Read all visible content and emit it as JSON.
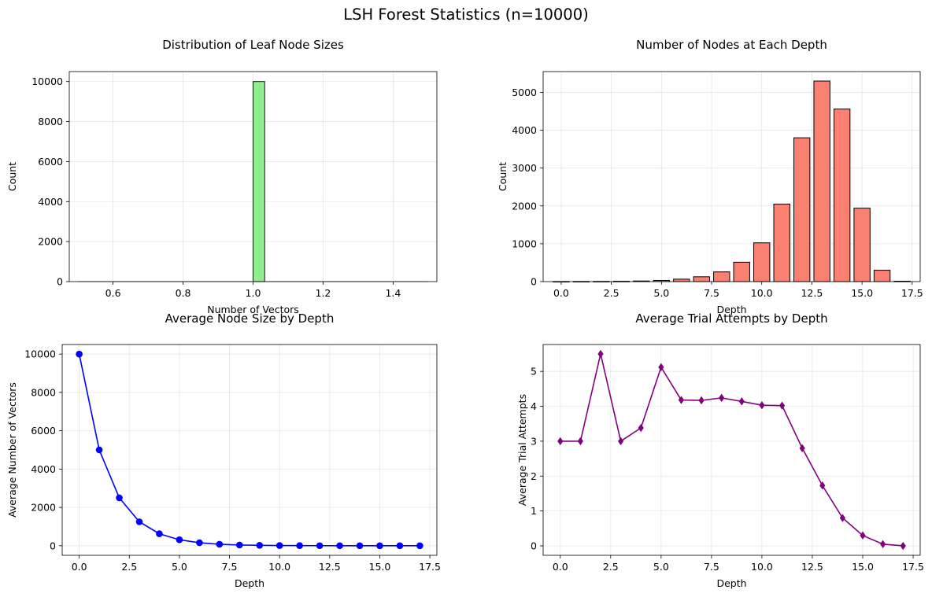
{
  "suptitle": "LSH Forest Statistics (n=10000)",
  "chart_data": [
    {
      "type": "bar",
      "title": "Distribution of Leaf Node Sizes",
      "xlabel": "Number of Vectors",
      "ylabel": "Count",
      "xlim": [
        0.475,
        1.525
      ],
      "ylim": [
        0,
        10500
      ],
      "xticks": [
        0.6,
        0.8,
        1.0,
        1.2,
        1.4
      ],
      "xtick_labels": [
        "0.6",
        "0.8",
        "1.0",
        "1.2",
        "1.4"
      ],
      "yticks": [
        0,
        2000,
        4000,
        6000,
        8000,
        10000
      ],
      "bins": {
        "start": 0.5,
        "width": 0.03333,
        "count": 30
      },
      "values": [
        0,
        0,
        0,
        0,
        0,
        0,
        0,
        0,
        0,
        0,
        0,
        0,
        0,
        0,
        0,
        10000,
        0,
        0,
        0,
        0,
        0,
        0,
        0,
        0,
        0,
        0,
        0,
        0,
        0,
        0
      ],
      "color": "#90ee90",
      "grid": true
    },
    {
      "type": "bar",
      "title": "Number of Nodes at Each Depth",
      "xlabel": "Depth",
      "ylabel": "Count",
      "xlim": [
        -0.9,
        17.9
      ],
      "ylim": [
        0,
        5550
      ],
      "xticks": [
        0,
        2.5,
        5,
        7.5,
        10,
        12.5,
        15,
        17.5
      ],
      "xtick_labels": [
        "0.0",
        "2.5",
        "5.0",
        "7.5",
        "10.0",
        "12.5",
        "15.0",
        "17.5"
      ],
      "yticks": [
        0,
        1000,
        2000,
        3000,
        4000,
        5000
      ],
      "categories": [
        0,
        1,
        2,
        3,
        4,
        5,
        6,
        7,
        8,
        9,
        10,
        11,
        12,
        13,
        14,
        15,
        16,
        17
      ],
      "values": [
        1,
        2,
        4,
        8,
        16,
        32,
        64,
        128,
        256,
        512,
        1024,
        2048,
        3800,
        5300,
        4560,
        1940,
        300,
        10
      ],
      "color": "#fa8072",
      "grid": true
    },
    {
      "type": "line",
      "title": "Average Node Size by Depth",
      "xlabel": "Depth",
      "ylabel": "Average Number of Vectors",
      "xlim": [
        -0.85,
        17.85
      ],
      "ylim": [
        -500,
        10500
      ],
      "xticks": [
        0,
        2.5,
        5,
        7.5,
        10,
        12.5,
        15,
        17.5
      ],
      "xtick_labels": [
        "0.0",
        "2.5",
        "5.0",
        "7.5",
        "10.0",
        "12.5",
        "15.0",
        "17.5"
      ],
      "yticks": [
        0,
        2000,
        4000,
        6000,
        8000,
        10000
      ],
      "x": [
        0,
        1,
        2,
        3,
        4,
        5,
        6,
        7,
        8,
        9,
        10,
        11,
        12,
        13,
        14,
        15,
        16,
        17
      ],
      "y": [
        10000,
        5000,
        2500,
        1250,
        625,
        312,
        156,
        78,
        39,
        20,
        10,
        5,
        3,
        2,
        1,
        1,
        1,
        1
      ],
      "color": "#0000ff",
      "marker": "circle",
      "grid": true
    },
    {
      "type": "line",
      "title": "Average Trial Attempts by Depth",
      "xlabel": "Depth",
      "ylabel": "Average Trial Attempts",
      "xlim": [
        -0.85,
        17.85
      ],
      "ylim": [
        -0.27,
        5.77
      ],
      "xticks": [
        0,
        2.5,
        5,
        7.5,
        10,
        12.5,
        15,
        17.5
      ],
      "xtick_labels": [
        "0.0",
        "2.5",
        "5.0",
        "7.5",
        "10.0",
        "12.5",
        "15.0",
        "17.5"
      ],
      "yticks": [
        0,
        1,
        2,
        3,
        4,
        5
      ],
      "x": [
        0,
        1,
        2,
        3,
        4,
        5,
        6,
        7,
        8,
        9,
        10,
        11,
        12,
        13,
        14,
        15,
        16,
        17
      ],
      "y": [
        3.0,
        3.0,
        5.5,
        3.0,
        3.38,
        5.12,
        4.18,
        4.17,
        4.24,
        4.14,
        4.03,
        4.02,
        2.8,
        1.73,
        0.8,
        0.3,
        0.05,
        0.0
      ],
      "color": "#800080",
      "marker": "diamond",
      "grid": true
    }
  ]
}
